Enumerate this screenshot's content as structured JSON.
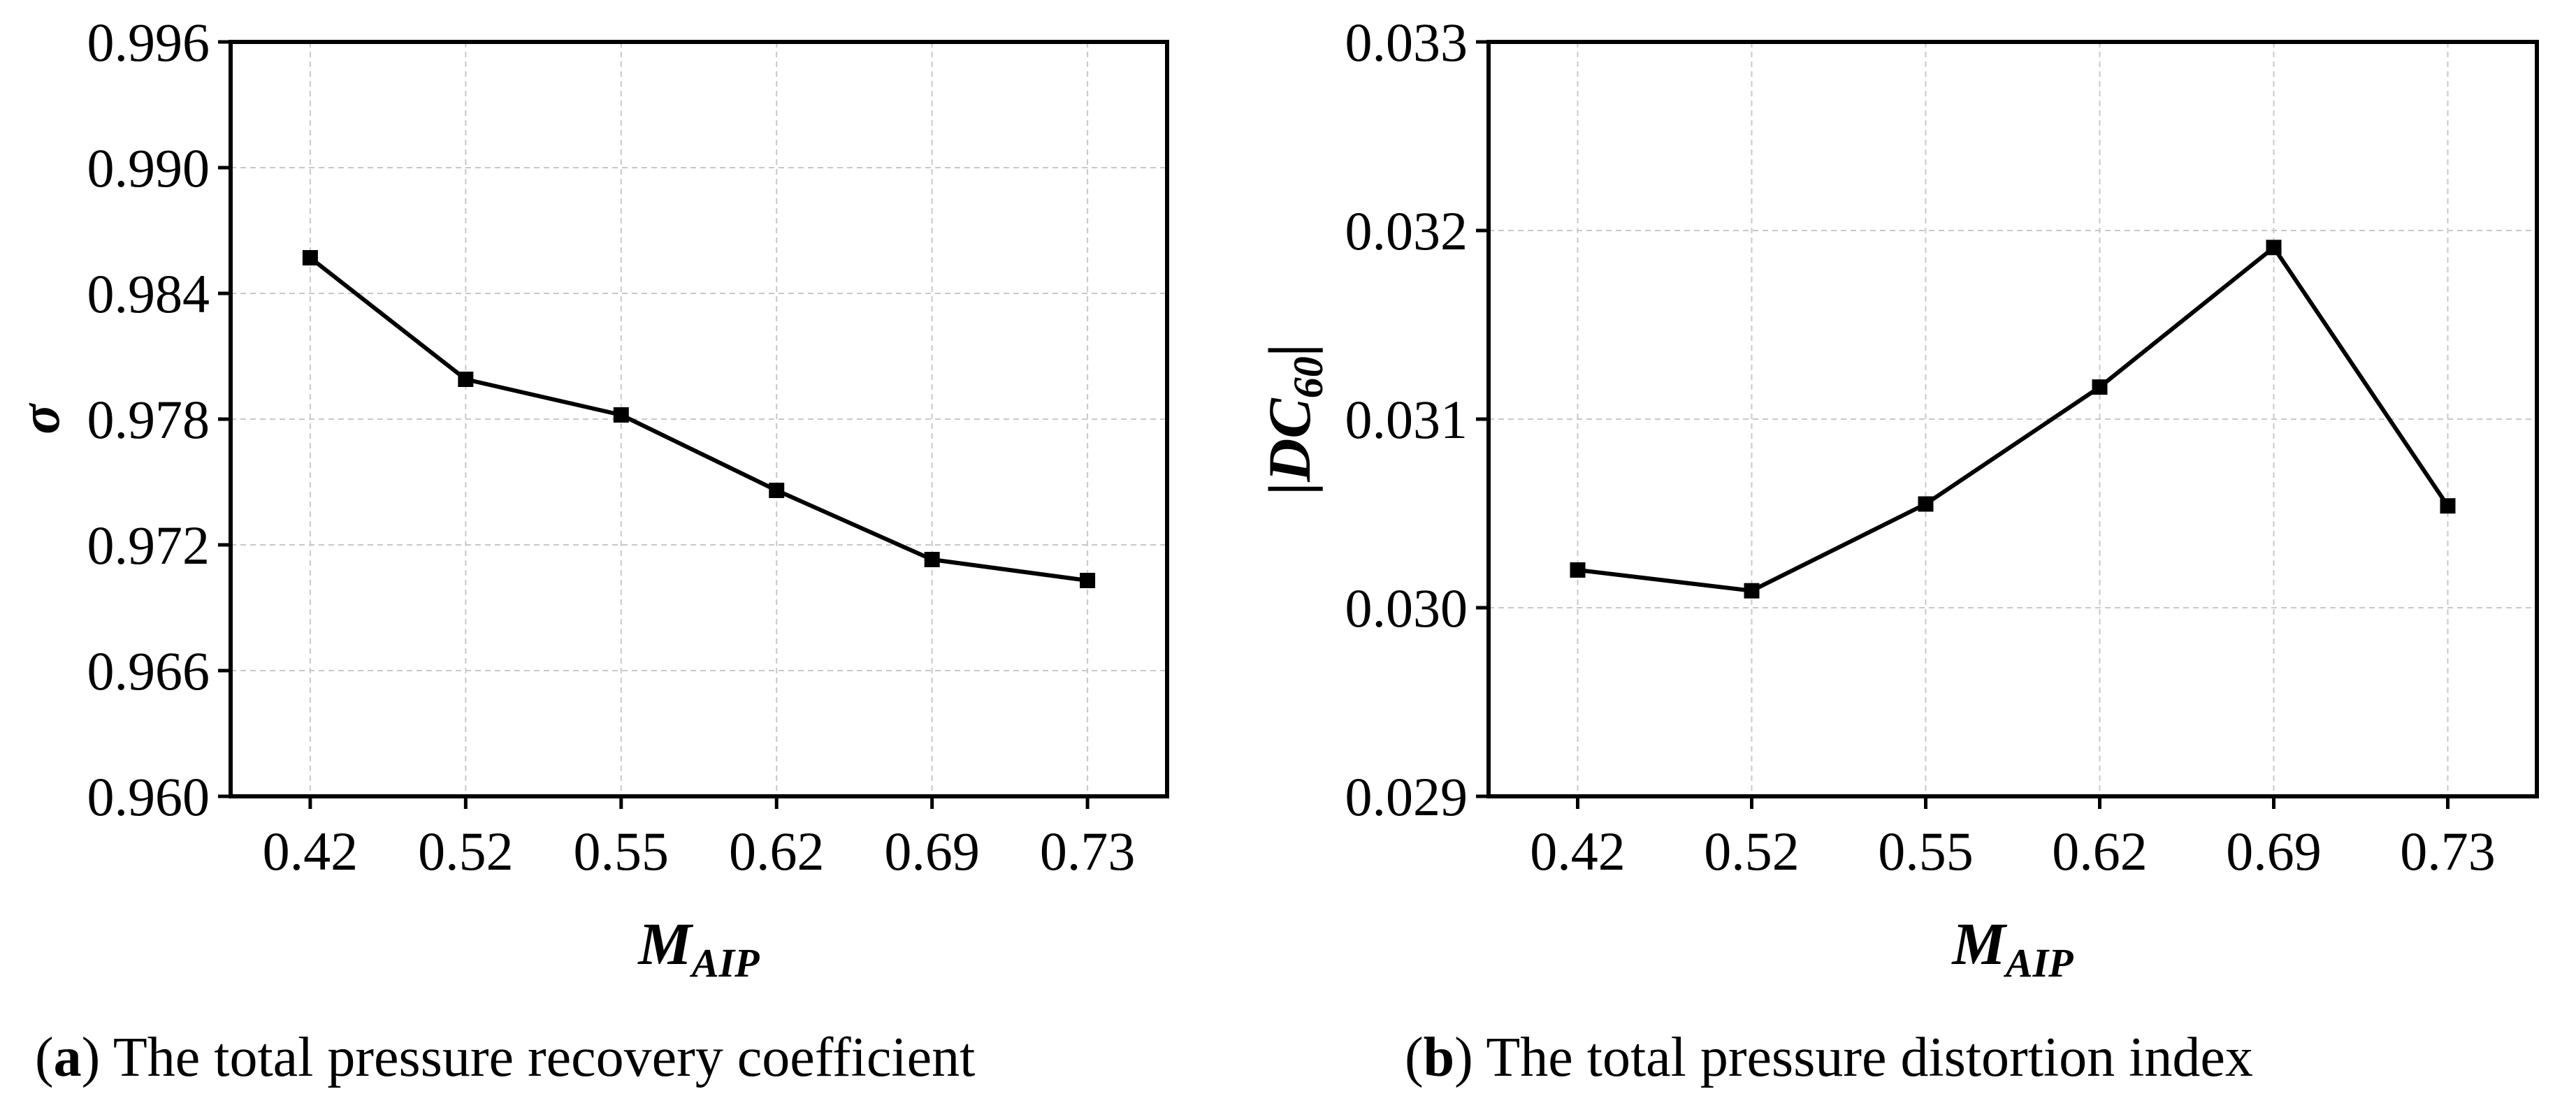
{
  "chart_data": [
    {
      "type": "line",
      "panel_letter": "a",
      "caption_text": "The total pressure recovery coefficient",
      "xlabel": {
        "main": "M",
        "sub": "AIP"
      },
      "ylabel": {
        "main": "σ"
      },
      "categories": [
        "0.42",
        "0.52",
        "0.55",
        "0.62",
        "0.69",
        "0.73"
      ],
      "values": [
        0.9857,
        0.9799,
        0.9782,
        0.9746,
        0.9713,
        0.9703
      ],
      "ylim": [
        0.96,
        0.996
      ],
      "yticks": [
        "0.960",
        "0.966",
        "0.972",
        "0.978",
        "0.984",
        "0.990",
        "0.996"
      ],
      "grid": true,
      "marker": "square",
      "color": "#000000"
    },
    {
      "type": "line",
      "panel_letter": "b",
      "caption_text": "The total pressure distortion index",
      "xlabel": {
        "main": "M",
        "sub": "AIP"
      },
      "ylabel": {
        "main": "|DC",
        "sub": "60",
        "tail": "|"
      },
      "categories": [
        "0.42",
        "0.52",
        "0.55",
        "0.62",
        "0.69",
        "0.73"
      ],
      "values": [
        0.0302,
        0.03009,
        0.03055,
        0.03117,
        0.03191,
        0.03054
      ],
      "ylim": [
        0.029,
        0.033
      ],
      "yticks": [
        "0.029",
        "0.030",
        "0.031",
        "0.032",
        "0.033"
      ],
      "grid": true,
      "marker": "square",
      "color": "#000000"
    }
  ]
}
